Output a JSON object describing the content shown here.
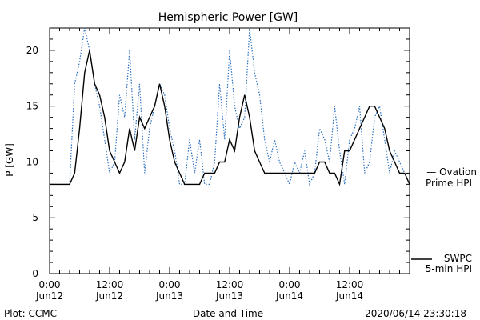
{
  "chart_data": {
    "type": "line",
    "title": "Hemispheric Power [GW]",
    "ylabel": "P [GW]",
    "xlabel": "Date and Time",
    "ylim": [
      0,
      22
    ],
    "yticks": [
      0,
      5,
      10,
      15,
      20
    ],
    "xlim": [
      "2020-06-12 00:00",
      "2020-06-14 23:30"
    ],
    "xtick_labels": [
      {
        "time": "0:00",
        "date": "Jun12"
      },
      {
        "time": "12:00",
        "date": "Jun12"
      },
      {
        "time": "0:00",
        "date": "Jun13"
      },
      {
        "time": "12:00",
        "date": "Jun13"
      },
      {
        "time": "0:00",
        "date": "Jun14"
      },
      {
        "time": "12:00",
        "date": "Jun14"
      }
    ],
    "grid": false,
    "series": [
      {
        "name": "Ovation Prime HPI",
        "color": "#2a6ebb",
        "style": "dotted",
        "x_hours": [
          0,
          4,
          5,
          6,
          7,
          8,
          9,
          10,
          11,
          12,
          13,
          14,
          15,
          16,
          17,
          18,
          19,
          20,
          21,
          22,
          23,
          24,
          25,
          26,
          27,
          28,
          29,
          30,
          31,
          32,
          33,
          34,
          35,
          36,
          37,
          38,
          39,
          40,
          41,
          42,
          43,
          44,
          45,
          46,
          47,
          48,
          49,
          50,
          51,
          52,
          53,
          54,
          55,
          56,
          57,
          58,
          59,
          60,
          61,
          62,
          63,
          64,
          65,
          66,
          67,
          68,
          69,
          70,
          71,
          72
        ],
        "values": [
          8,
          8,
          17,
          19,
          22,
          20,
          17,
          15,
          12,
          9,
          10,
          16,
          14,
          20,
          12,
          17,
          9,
          13,
          15,
          17,
          16,
          13,
          11,
          8,
          8,
          12,
          9,
          12,
          8,
          8,
          10,
          17,
          12,
          20,
          15,
          13,
          14,
          22,
          18,
          16,
          12,
          10,
          12,
          10,
          9,
          8,
          10,
          9,
          11,
          8,
          9,
          13,
          12,
          10,
          15,
          11,
          8,
          12,
          13,
          15,
          9,
          10,
          14,
          15,
          12,
          9,
          11,
          10,
          9,
          8
        ]
      },
      {
        "name": "SWPC 5-min HPI",
        "color": "#000000",
        "style": "solid",
        "x_hours": [
          0,
          4,
          5,
          6,
          7,
          8,
          9,
          10,
          11,
          12,
          13,
          14,
          15,
          16,
          17,
          18,
          19,
          20,
          21,
          22,
          23,
          24,
          25,
          26,
          27,
          28,
          29,
          30,
          31,
          32,
          33,
          34,
          35,
          36,
          37,
          38,
          39,
          40,
          41,
          42,
          43,
          44,
          45,
          46,
          47,
          48,
          49,
          50,
          51,
          52,
          53,
          54,
          55,
          56,
          57,
          58,
          59,
          60,
          61,
          62,
          63,
          64,
          65,
          66,
          67,
          68,
          69,
          70,
          71,
          72
        ],
        "values": [
          8,
          8,
          9,
          13,
          18,
          20,
          17,
          16,
          14,
          11,
          10,
          9,
          10,
          13,
          11,
          14,
          13,
          14,
          15,
          17,
          15,
          12,
          10,
          9,
          8,
          8,
          8,
          8,
          9,
          9,
          9,
          10,
          10,
          12,
          11,
          14,
          16,
          14,
          11,
          10,
          9,
          9,
          9,
          9,
          9,
          9,
          9,
          9,
          9,
          9,
          9,
          10,
          10,
          9,
          9,
          8,
          11,
          11,
          12,
          13,
          14,
          15,
          15,
          14,
          13,
          11,
          10,
          9,
          9,
          8
        ]
      }
    ],
    "legend": [
      {
        "line1": "— Ovation",
        "line2": "Prime HPI",
        "color": "#2a6ebb"
      },
      {
        "line1": "SWPC",
        "line2": "5-min HPI",
        "color": "#000000"
      }
    ]
  },
  "footer": {
    "left": "Plot: CCMC",
    "center": "Date and Time",
    "right": "2020/06/14 23:30:18"
  }
}
